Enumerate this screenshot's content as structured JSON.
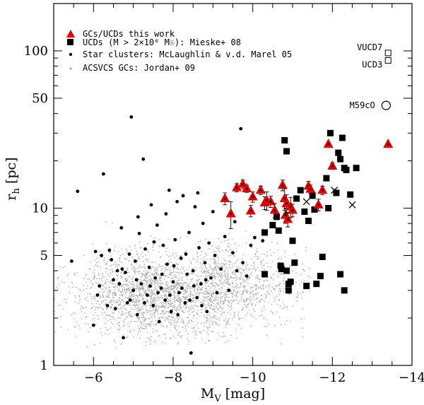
{
  "chart_data": {
    "type": "scatter",
    "xlabel": "M_V [mag]",
    "ylabel": "r_h [pc]",
    "xlim": [
      -5,
      -14
    ],
    "ylim": [
      1,
      200
    ],
    "y_scale": "log",
    "x_ticks": [
      -6,
      -8,
      -10,
      -12,
      -14
    ],
    "x_tick_labels": [
      "−6",
      "−8",
      "−10",
      "−12",
      "−14"
    ],
    "y_ticks": [
      1,
      5,
      10,
      50,
      100
    ],
    "y_tick_labels": [
      "1",
      "5",
      "10",
      "50",
      "100"
    ],
    "legend": [
      {
        "marker": "red-triangle",
        "label": "GCs/UCDs this work"
      },
      {
        "marker": "black-square",
        "label": "UCDs (M > 2×10⁶ M☉): ",
        "label_suffix": "Mieske+ 08"
      },
      {
        "marker": "black-dot",
        "label": "Star clusters: McLaughlin & v.d. Marel 05"
      },
      {
        "marker": "grey-dot",
        "label": "ACSVCS GCs: Jordan+ 09"
      }
    ],
    "annotations": [
      {
        "text": "VUCD7",
        "x": -13.4,
        "y": 97
      },
      {
        "text": "UCD3",
        "x": -13.4,
        "y": 87
      },
      {
        "text": "M59cO",
        "x": -13.25,
        "y": 45
      }
    ],
    "series": [
      {
        "name": "GCs/UCDs this work",
        "marker": "triangle",
        "color": "#e00000",
        "points": [
          {
            "x": -9.3,
            "y": 11.5,
            "err": 1.0
          },
          {
            "x": -9.45,
            "y": 9.2,
            "err": 1.8
          },
          {
            "x": -9.6,
            "y": 13.5,
            "err": 0.8
          },
          {
            "x": -9.75,
            "y": 14.2,
            "err": 0.9
          },
          {
            "x": -9.85,
            "y": 13.3,
            "err": 0.7
          },
          {
            "x": -9.95,
            "y": 9.6,
            "err": 0.8
          },
          {
            "x": -10.0,
            "y": 11.8,
            "err": 0.9
          },
          {
            "x": -10.2,
            "y": 13.0,
            "err": 0.8
          },
          {
            "x": -10.3,
            "y": 10.8,
            "err": 1.0
          },
          {
            "x": -10.35,
            "y": 11.2,
            "err": 1.5
          },
          {
            "x": -10.45,
            "y": 11.0,
            "err": 0.9
          },
          {
            "x": -10.55,
            "y": 9.7,
            "err": 1.0
          },
          {
            "x": -10.75,
            "y": 14.0,
            "err": 1.1
          },
          {
            "x": -10.8,
            "y": 11.5,
            "err": 1.8
          },
          {
            "x": -10.82,
            "y": 9.0,
            "err": 1.0
          },
          {
            "x": -10.85,
            "y": 10.7,
            "err": 1.5
          },
          {
            "x": -10.88,
            "y": 8.5,
            "err": 0.9
          },
          {
            "x": -10.95,
            "y": 10.2,
            "err": 1.5
          },
          {
            "x": -11.0,
            "y": 9.7,
            "err": 0.9
          },
          {
            "x": -11.4,
            "y": 13.8,
            "err": 1.0
          },
          {
            "x": -11.45,
            "y": 13.2,
            "err": 0.8
          },
          {
            "x": -11.65,
            "y": 10.5,
            "err": 0.9
          },
          {
            "x": -11.75,
            "y": 13.0,
            "err": 0.8
          },
          {
            "x": -11.9,
            "y": 25.5,
            "err": 0.8
          },
          {
            "x": -12.0,
            "y": 18.5,
            "err": 0.9
          },
          {
            "x": -13.4,
            "y": 25.5,
            "err": 0.5
          }
        ]
      },
      {
        "name": "UCDs (M > 2×10⁶ M☉)",
        "marker": "square",
        "color": "#000000",
        "points": [
          {
            "x": -10.3,
            "y": 3.8
          },
          {
            "x": -10.3,
            "y": 7.0
          },
          {
            "x": -10.5,
            "y": 7.8
          },
          {
            "x": -10.6,
            "y": 8.8
          },
          {
            "x": -10.65,
            "y": 7.2
          },
          {
            "x": -10.7,
            "y": 4.3
          },
          {
            "x": -10.72,
            "y": 4.1
          },
          {
            "x": -10.8,
            "y": 27.0
          },
          {
            "x": -10.85,
            "y": 23.0
          },
          {
            "x": -10.85,
            "y": 4.0
          },
          {
            "x": -10.9,
            "y": 3.3
          },
          {
            "x": -10.9,
            "y": 3.0
          },
          {
            "x": -10.95,
            "y": 3.4
          },
          {
            "x": -11.0,
            "y": 6.2
          },
          {
            "x": -11.05,
            "y": 4.5
          },
          {
            "x": -11.1,
            "y": 11.5
          },
          {
            "x": -11.2,
            "y": 13.0
          },
          {
            "x": -11.3,
            "y": 9.5
          },
          {
            "x": -11.35,
            "y": 3.2
          },
          {
            "x": -11.4,
            "y": 8.3
          },
          {
            "x": -11.5,
            "y": 12.0
          },
          {
            "x": -11.55,
            "y": 9.8
          },
          {
            "x": -11.6,
            "y": 3.3
          },
          {
            "x": -11.7,
            "y": 3.7
          },
          {
            "x": -11.75,
            "y": 4.9
          },
          {
            "x": -11.85,
            "y": 15.5
          },
          {
            "x": -11.9,
            "y": 10.0
          },
          {
            "x": -11.95,
            "y": 30.0
          },
          {
            "x": -12.1,
            "y": 12.5
          },
          {
            "x": -12.15,
            "y": 22.5
          },
          {
            "x": -12.2,
            "y": 3.8
          },
          {
            "x": -12.2,
            "y": 20.5
          },
          {
            "x": -12.25,
            "y": 28.0
          },
          {
            "x": -12.3,
            "y": 18.0
          },
          {
            "x": -12.3,
            "y": 3.0
          },
          {
            "x": -12.35,
            "y": 17.5
          },
          {
            "x": -12.45,
            "y": 12.2
          },
          {
            "x": -12.6,
            "y": 18.0
          },
          {
            "x": -13.4,
            "y": 97
          },
          {
            "x": -13.4,
            "y": 87
          }
        ]
      },
      {
        "name": "Star clusters: McLaughlin & v.d. Marel 05",
        "marker": "dot",
        "color": "#000000",
        "points": [
          {
            "x": -5.45,
            "y": 4.6
          },
          {
            "x": -5.6,
            "y": 12.8
          },
          {
            "x": -6.0,
            "y": 1.8
          },
          {
            "x": -6.05,
            "y": 5.3
          },
          {
            "x": -6.1,
            "y": 2.8
          },
          {
            "x": -6.2,
            "y": 5.0
          },
          {
            "x": -6.25,
            "y": 16.5
          },
          {
            "x": -6.4,
            "y": 5.4
          },
          {
            "x": -6.5,
            "y": 3.5
          },
          {
            "x": -6.55,
            "y": 2.3
          },
          {
            "x": -6.6,
            "y": 4.0
          },
          {
            "x": -6.7,
            "y": 7.5
          },
          {
            "x": -6.75,
            "y": 1.5
          },
          {
            "x": -6.8,
            "y": 3.9
          },
          {
            "x": -6.85,
            "y": 2.5
          },
          {
            "x": -6.9,
            "y": 5.1
          },
          {
            "x": -6.95,
            "y": 38.0
          },
          {
            "x": -7.0,
            "y": 3.0
          },
          {
            "x": -7.05,
            "y": 4.6
          },
          {
            "x": -7.1,
            "y": 2.1
          },
          {
            "x": -7.15,
            "y": 6.9
          },
          {
            "x": -7.2,
            "y": 3.3
          },
          {
            "x": -7.25,
            "y": 20.5
          },
          {
            "x": -7.3,
            "y": 5.5
          },
          {
            "x": -7.35,
            "y": 2.8
          },
          {
            "x": -7.4,
            "y": 4.2
          },
          {
            "x": -7.45,
            "y": 10.5
          },
          {
            "x": -7.5,
            "y": 2.4
          },
          {
            "x": -7.55,
            "y": 3.6
          },
          {
            "x": -7.6,
            "y": 7.8
          },
          {
            "x": -7.65,
            "y": 1.9
          },
          {
            "x": -7.7,
            "y": 3.1
          },
          {
            "x": -7.75,
            "y": 5.8
          },
          {
            "x": -7.8,
            "y": 2.6
          },
          {
            "x": -7.85,
            "y": 4.4
          },
          {
            "x": -7.9,
            "y": 13.0
          },
          {
            "x": -7.95,
            "y": 2.2
          },
          {
            "x": -8.0,
            "y": 3.4
          },
          {
            "x": -8.05,
            "y": 6.3
          },
          {
            "x": -8.1,
            "y": 11.0
          },
          {
            "x": -8.15,
            "y": 2.9
          },
          {
            "x": -8.2,
            "y": 4.8
          },
          {
            "x": -8.25,
            "y": 12.0
          },
          {
            "x": -8.3,
            "y": 2.5
          },
          {
            "x": -8.35,
            "y": 3.8
          },
          {
            "x": -8.4,
            "y": 7.0
          },
          {
            "x": -8.45,
            "y": 1.2
          },
          {
            "x": -8.5,
            "y": 4.0
          },
          {
            "x": -8.55,
            "y": 10.2
          },
          {
            "x": -8.6,
            "y": 2.7
          },
          {
            "x": -8.65,
            "y": 5.6
          },
          {
            "x": -8.7,
            "y": 3.3
          },
          {
            "x": -8.75,
            "y": 8.0
          },
          {
            "x": -8.8,
            "y": 4.5
          },
          {
            "x": -8.85,
            "y": 2.2
          },
          {
            "x": -8.9,
            "y": 6.0
          },
          {
            "x": -8.95,
            "y": 3.6
          },
          {
            "x": -9.0,
            "y": 9.5
          },
          {
            "x": -9.05,
            "y": 5.0
          },
          {
            "x": -9.1,
            "y": 2.9
          },
          {
            "x": -9.2,
            "y": 4.1
          },
          {
            "x": -9.3,
            "y": 6.6
          },
          {
            "x": -9.4,
            "y": 3.0
          },
          {
            "x": -9.5,
            "y": 5.2
          },
          {
            "x": -9.55,
            "y": 8.2
          },
          {
            "x": -9.6,
            "y": 4.0
          },
          {
            "x": -9.7,
            "y": 32.0
          },
          {
            "x": -9.75,
            "y": 4.5
          },
          {
            "x": -9.85,
            "y": 3.7
          },
          {
            "x": -9.95,
            "y": 5.8
          },
          {
            "x": -10.05,
            "y": 6.5
          },
          {
            "x": -10.25,
            "y": 6.2
          },
          {
            "x": -6.15,
            "y": 3.2
          },
          {
            "x": -6.35,
            "y": 2.4
          },
          {
            "x": -6.45,
            "y": 4.7
          },
          {
            "x": -6.65,
            "y": 3.3
          },
          {
            "x": -6.72,
            "y": 4.1
          },
          {
            "x": -6.92,
            "y": 2.6
          },
          {
            "x": -7.08,
            "y": 3.5
          },
          {
            "x": -7.12,
            "y": 8.8
          },
          {
            "x": -7.28,
            "y": 2.5
          },
          {
            "x": -7.42,
            "y": 3.2
          },
          {
            "x": -7.52,
            "y": 6.1
          },
          {
            "x": -7.62,
            "y": 2.9
          },
          {
            "x": -7.72,
            "y": 3.8
          },
          {
            "x": -7.82,
            "y": 9.2
          },
          {
            "x": -7.92,
            "y": 2.8
          },
          {
            "x": -8.02,
            "y": 4.3
          },
          {
            "x": -8.12,
            "y": 2.1
          },
          {
            "x": -8.22,
            "y": 3.1
          },
          {
            "x": -8.32,
            "y": 5.1
          },
          {
            "x": -8.42,
            "y": 2.6
          },
          {
            "x": -8.52,
            "y": 3.2
          },
          {
            "x": -8.62,
            "y": 12.5
          },
          {
            "x": -8.72,
            "y": 2.4
          },
          {
            "x": -8.82,
            "y": 3.5
          }
        ]
      },
      {
        "name": "ACSVCS GCs: Jordan+ 09",
        "marker": "small-dot",
        "color": "#a8a8a8",
        "distribution": {
          "count": 5200,
          "x_mean": -7.6,
          "x_sd": 1.05,
          "log10_y_mean": 0.45,
          "log10_y_sd": 0.13,
          "x_range": [
            -5.0,
            -11.5
          ],
          "y_range": [
            1.3,
            12.0
          ]
        }
      }
    ],
    "crosses": [
      {
        "x": -11.35,
        "y": 11.0
      },
      {
        "x": -12.05,
        "y": 13.0
      },
      {
        "x": -12.5,
        "y": 10.5
      }
    ],
    "circles": [
      {
        "x": -13.35,
        "y": 45
      }
    ]
  }
}
